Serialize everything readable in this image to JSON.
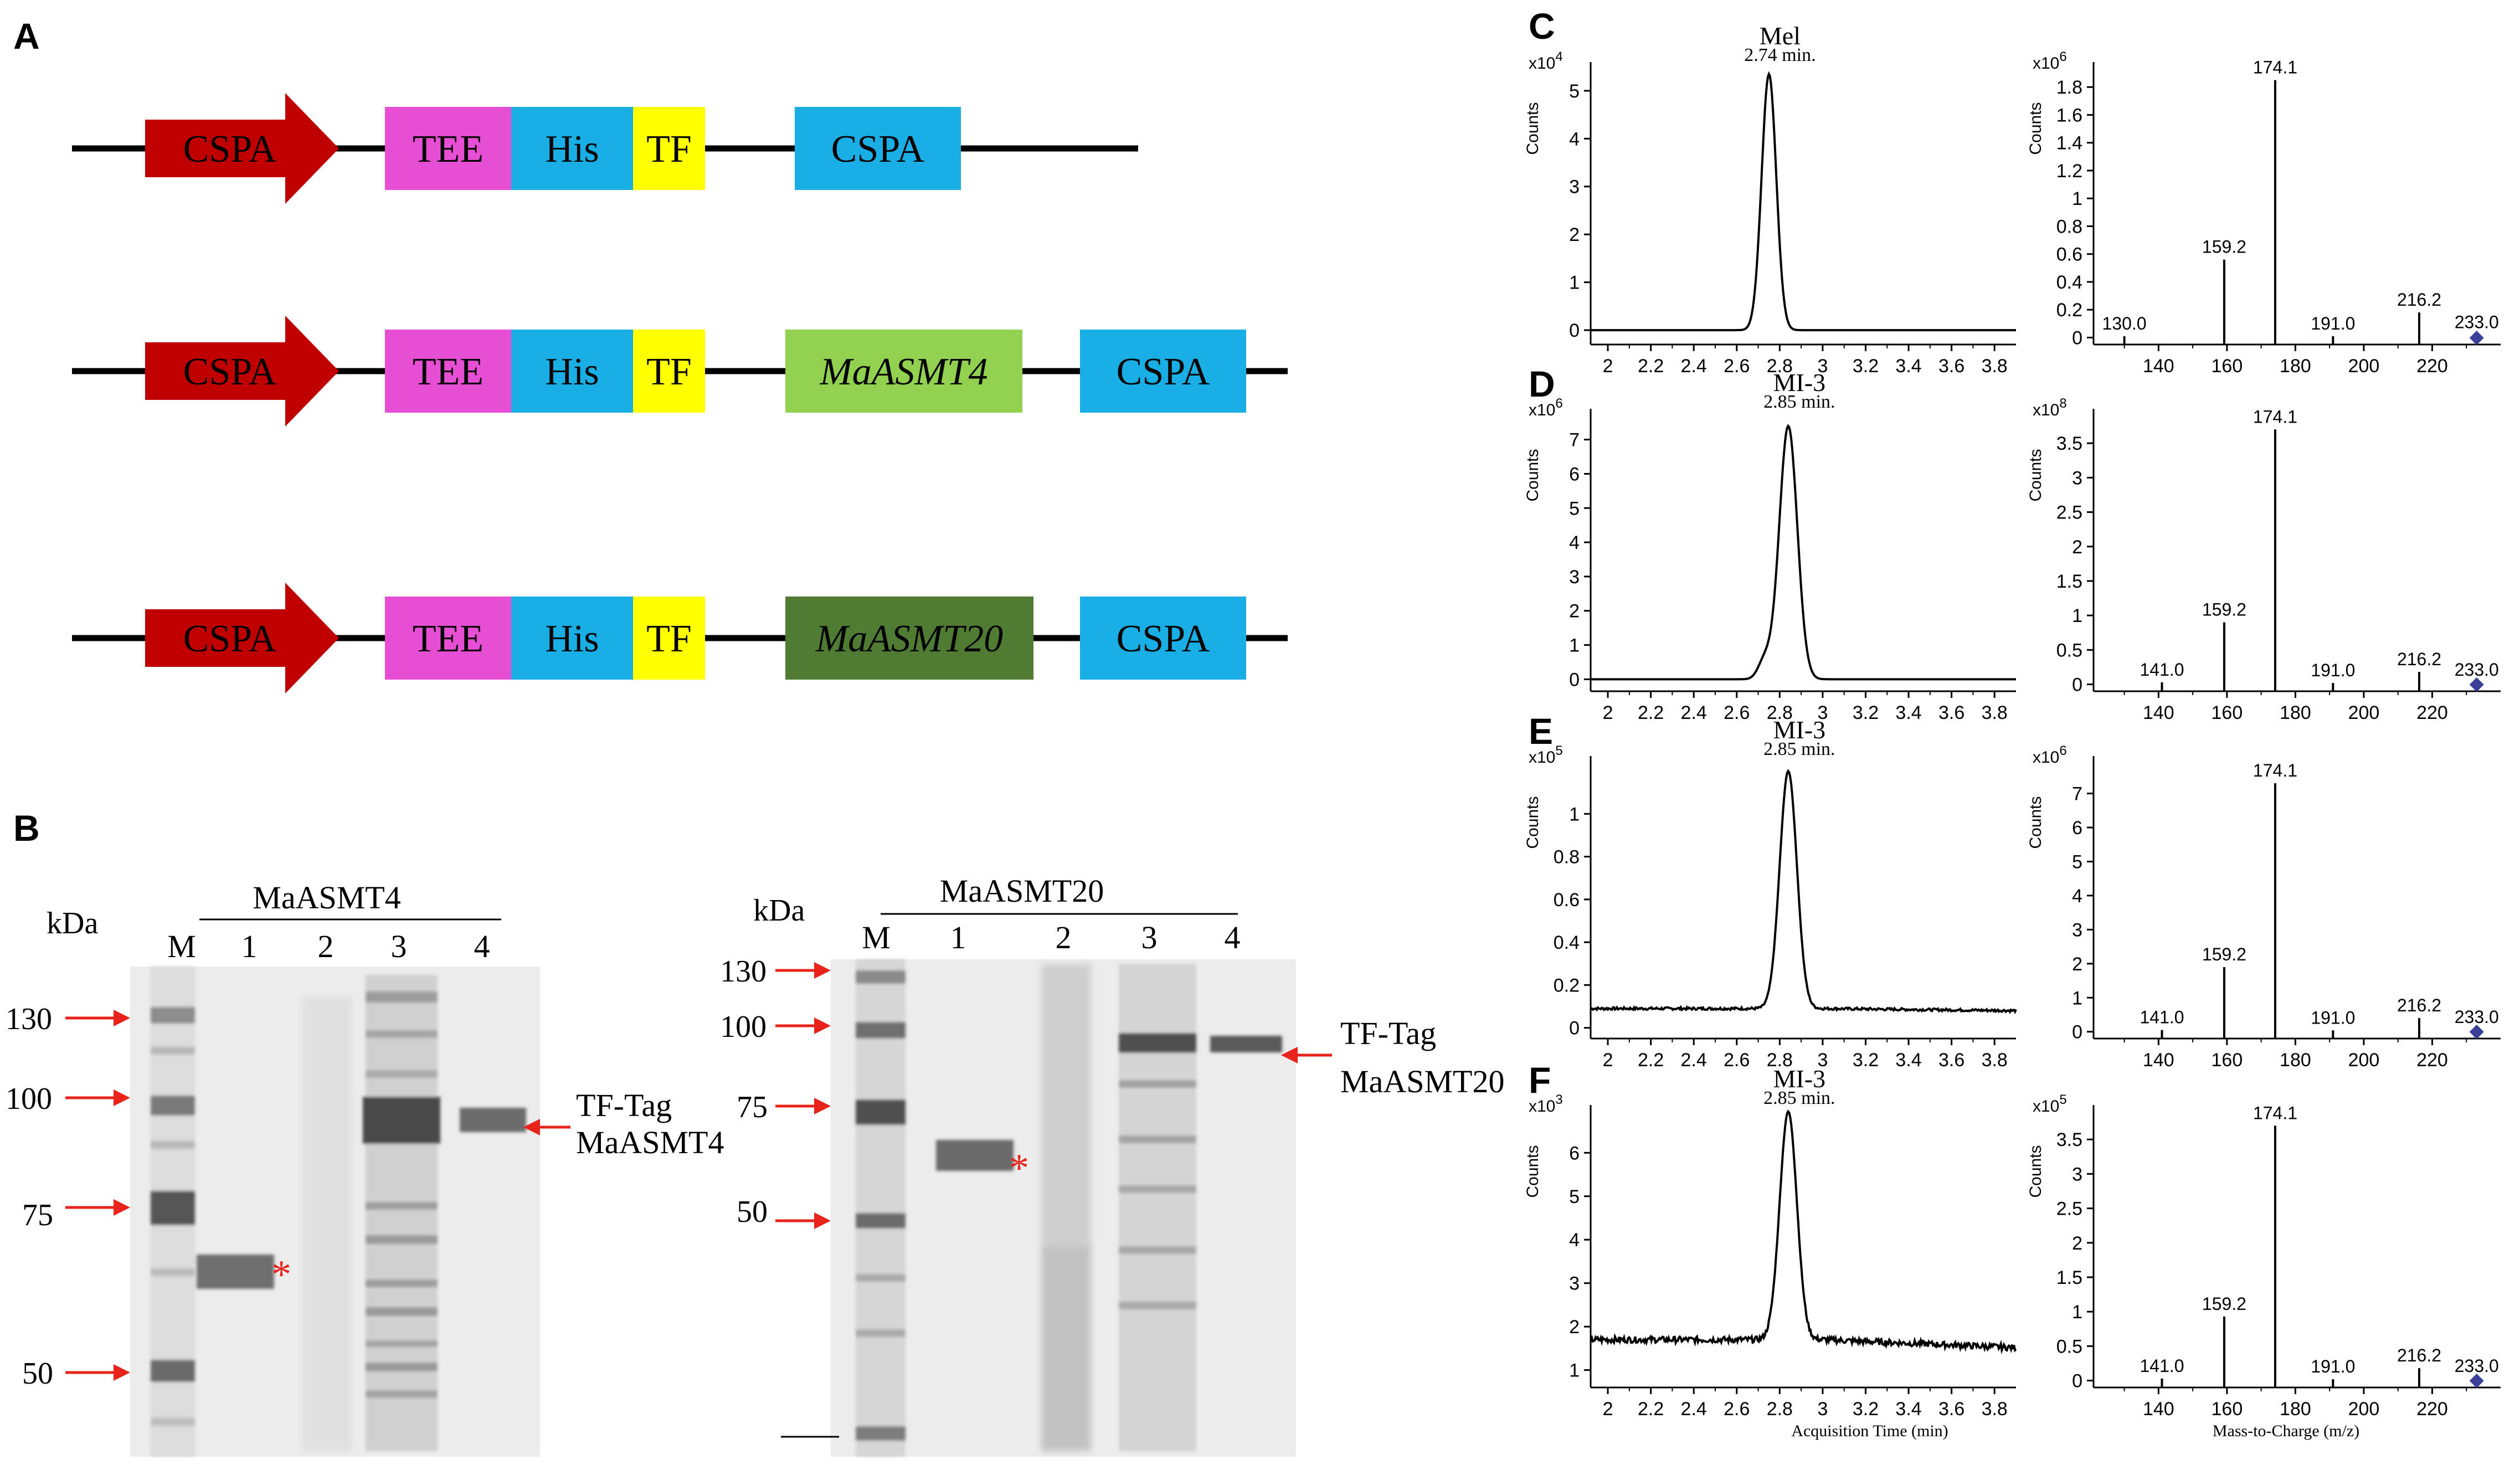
{
  "panels": {
    "A": {
      "letter": "A",
      "constructs": [
        {
          "elements": [
            {
              "label": "CSPA",
              "kind": "promoter",
              "color": "#c00000"
            },
            {
              "label": "TEE",
              "kind": "box",
              "color": "#e64fd3"
            },
            {
              "label": "His",
              "kind": "box",
              "color": "#19aee4"
            },
            {
              "label": "TF",
              "kind": "box",
              "color": "#ffff00"
            },
            {
              "label": "CSPA",
              "kind": "box",
              "color": "#19aee4"
            }
          ]
        },
        {
          "elements": [
            {
              "label": "CSPA",
              "kind": "promoter",
              "color": "#c00000"
            },
            {
              "label": "TEE",
              "kind": "box",
              "color": "#e64fd3"
            },
            {
              "label": "His",
              "kind": "box",
              "color": "#19aee4"
            },
            {
              "label": "TF",
              "kind": "box",
              "color": "#ffff00"
            },
            {
              "label": "MaASMT4",
              "kind": "gene",
              "color": "#92d050"
            },
            {
              "label": "CSPA",
              "kind": "box",
              "color": "#19aee4"
            }
          ]
        },
        {
          "elements": [
            {
              "label": "CSPA",
              "kind": "promoter",
              "color": "#c00000"
            },
            {
              "label": "TEE",
              "kind": "box",
              "color": "#e64fd3"
            },
            {
              "label": "His",
              "kind": "box",
              "color": "#19aee4"
            },
            {
              "label": "TF",
              "kind": "box",
              "color": "#ffff00"
            },
            {
              "label": "MaASMT20",
              "kind": "gene",
              "color": "#4f7b32"
            },
            {
              "label": "CSPA",
              "kind": "box",
              "color": "#19aee4"
            }
          ]
        }
      ]
    },
    "B": {
      "letter": "B",
      "gels": [
        {
          "title": "MaASMT4",
          "kda_label": "kDa",
          "lanes": [
            "M",
            "1",
            "2",
            "3",
            "4"
          ],
          "markers": [
            "130",
            "100",
            "75",
            "50"
          ],
          "band_label_line1": "TF-Tag",
          "band_label_line2": "MaASMT4",
          "star": "*"
        },
        {
          "title": "MaASMT20",
          "kda_label": "kDa",
          "lanes": [
            "M",
            "1",
            "2",
            "3",
            "4"
          ],
          "markers": [
            "130",
            "100",
            "75",
            "50"
          ],
          "band_label_line1": "TF-Tag",
          "band_label_line2": "MaASMT20",
          "star": "*"
        }
      ]
    },
    "chrom_common": {
      "ylabel": "Counts",
      "x_ticks": [
        "2",
        "2.2",
        "2.4",
        "2.6",
        "2.8",
        "3",
        "3.2",
        "3.4",
        "3.6",
        "3.8"
      ],
      "xlim": [
        1.92,
        3.9
      ],
      "xlabel": "Acquisition Time (min)"
    },
    "ms_common": {
      "ylabel": "Counts",
      "x_ticks": [
        "140",
        "160",
        "180",
        "200",
        "220"
      ],
      "xlim": [
        121,
        240
      ],
      "xlabel": "Mass-to-Charge (m/z)",
      "marker_color": "#3a3f9a"
    },
    "rows": [
      {
        "letter": "C",
        "chrom": {
          "compound": "Mel",
          "rt_label": "2.74 min.",
          "scale": "x10",
          "exp": "4",
          "y_ticks": [
            "0",
            "1",
            "2",
            "3",
            "4",
            "5"
          ],
          "ylim": [
            -0.3,
            5.6
          ],
          "peak_rt": 2.75,
          "peak_height": 5.35,
          "peak_sigma": 0.034,
          "baseline": 0.0,
          "noise": 0.0,
          "shoulder": 0
        },
        "ms": {
          "scale": "x10",
          "exp": "6",
          "y_ticks": [
            "0",
            "0.2",
            "0.4",
            "0.6",
            "0.8",
            "1",
            "1.2",
            "1.4",
            "1.6",
            "1.8"
          ],
          "ylim": [
            -0.05,
            1.98
          ],
          "peaks": [
            {
              "mz": 130.0,
              "intensity": 0.01,
              "label": "130.0"
            },
            {
              "mz": 159.2,
              "intensity": 0.56,
              "label": "159.2"
            },
            {
              "mz": 174.1,
              "intensity": 1.85,
              "label": "174.1"
            },
            {
              "mz": 191.0,
              "intensity": 0.01,
              "label": "191.0"
            },
            {
              "mz": 216.2,
              "intensity": 0.18,
              "label": "216.2"
            },
            {
              "mz": 233.0,
              "intensity": 0.02,
              "label": "233.0"
            }
          ]
        }
      },
      {
        "letter": "D",
        "chrom": {
          "compound": "MI-3",
          "rt_label": "2.85 min.",
          "scale": "x10",
          "exp": "6",
          "y_ticks": [
            "0",
            "1",
            "2",
            "3",
            "4",
            "5",
            "6",
            "7"
          ],
          "ylim": [
            -0.35,
            7.9
          ],
          "peak_rt": 2.84,
          "peak_height": 7.4,
          "peak_sigma": 0.042,
          "baseline": 0.0,
          "noise": 0.0,
          "shoulder": 1
        },
        "ms": {
          "scale": "x10",
          "exp": "8",
          "y_ticks": [
            "0",
            "0.5",
            "1",
            "1.5",
            "2",
            "2.5",
            "3",
            "3.5"
          ],
          "ylim": [
            -0.1,
            4.0
          ],
          "peaks": [
            {
              "mz": 141.0,
              "intensity": 0.03,
              "label": "141.0"
            },
            {
              "mz": 159.2,
              "intensity": 0.9,
              "label": "159.2"
            },
            {
              "mz": 174.1,
              "intensity": 3.7,
              "label": "174.1"
            },
            {
              "mz": 191.0,
              "intensity": 0.02,
              "label": "191.0"
            },
            {
              "mz": 216.2,
              "intensity": 0.18,
              "label": "216.2"
            },
            {
              "mz": 233.0,
              "intensity": 0.03,
              "label": "233.0"
            }
          ]
        }
      },
      {
        "letter": "E",
        "chrom": {
          "compound": "MI-3",
          "rt_label": "2.85 min.",
          "scale": "x10",
          "exp": "5",
          "y_ticks": [
            "0",
            "0.2",
            "0.4",
            "0.6",
            "0.8",
            "1"
          ],
          "ylim": [
            -0.05,
            1.27
          ],
          "peak_rt": 2.84,
          "peak_height": 1.2,
          "peak_sigma": 0.04,
          "baseline": 0.09,
          "noise": 0.006,
          "shoulder": 0
        },
        "ms": {
          "scale": "x10",
          "exp": "6",
          "y_ticks": [
            "0",
            "1",
            "2",
            "3",
            "4",
            "5",
            "6",
            "7"
          ],
          "ylim": [
            -0.2,
            8.1
          ],
          "peaks": [
            {
              "mz": 141.0,
              "intensity": 0.05,
              "label": "141.0"
            },
            {
              "mz": 159.2,
              "intensity": 1.9,
              "label": "159.2"
            },
            {
              "mz": 174.1,
              "intensity": 7.3,
              "label": "174.1"
            },
            {
              "mz": 191.0,
              "intensity": 0.04,
              "label": "191.0"
            },
            {
              "mz": 216.2,
              "intensity": 0.4,
              "label": "216.2"
            },
            {
              "mz": 233.0,
              "intensity": 0.06,
              "label": "233.0"
            }
          ]
        }
      },
      {
        "letter": "F",
        "chrom": {
          "compound": "MI-3",
          "rt_label": "2.85 min.",
          "scale": "x10",
          "exp": "3",
          "y_ticks": [
            "1",
            "2",
            "3",
            "4",
            "5",
            "6"
          ],
          "ylim": [
            0.6,
            7.1
          ],
          "peak_rt": 2.84,
          "peak_height": 6.95,
          "peak_sigma": 0.04,
          "baseline": 1.7,
          "noise": 0.07,
          "shoulder": 0
        },
        "ms": {
          "scale": "x10",
          "exp": "5",
          "y_ticks": [
            "0",
            "0.5",
            "1",
            "1.5",
            "2",
            "2.5",
            "3",
            "3.5"
          ],
          "ylim": [
            -0.1,
            4.0
          ],
          "peaks": [
            {
              "mz": 141.0,
              "intensity": 0.03,
              "label": "141.0"
            },
            {
              "mz": 159.2,
              "intensity": 0.93,
              "label": "159.2"
            },
            {
              "mz": 174.1,
              "intensity": 3.7,
              "label": "174.1"
            },
            {
              "mz": 191.0,
              "intensity": 0.02,
              "label": "191.0"
            },
            {
              "mz": 216.2,
              "intensity": 0.18,
              "label": "216.2"
            },
            {
              "mz": 233.0,
              "intensity": 0.03,
              "label": "233.0"
            }
          ]
        }
      }
    ]
  }
}
